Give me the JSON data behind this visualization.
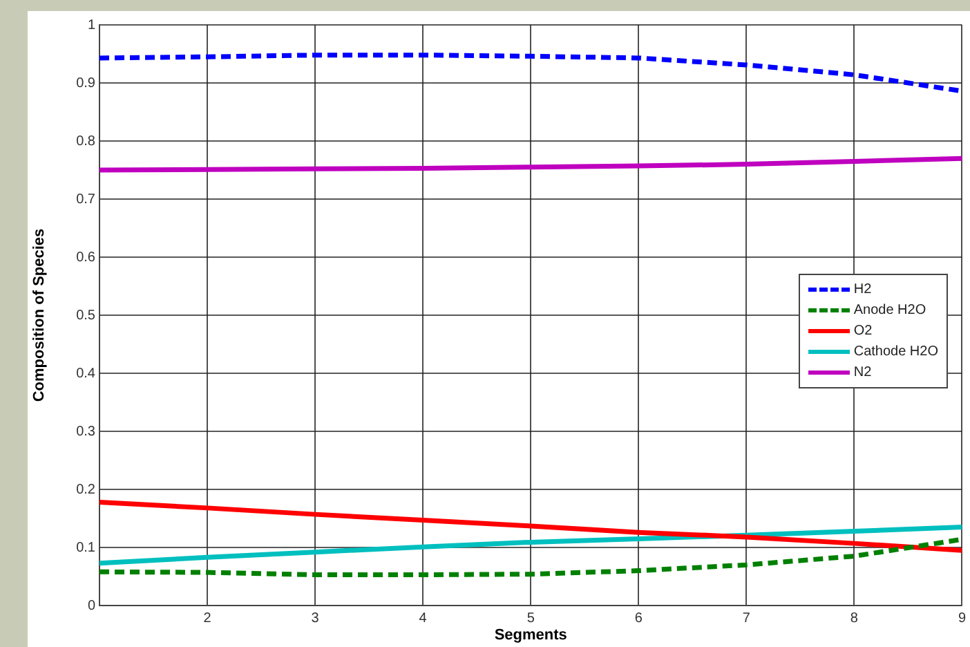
{
  "chart_data": {
    "type": "line",
    "xlabel": "Segments",
    "ylabel": "Composition of Species",
    "x": [
      1,
      2,
      3,
      4,
      5,
      6,
      7,
      8,
      9
    ],
    "xlim": [
      1,
      9
    ],
    "xticks": [
      {
        "value": 1,
        "label": null
      },
      2,
      3,
      4,
      5,
      6,
      7,
      8,
      9
    ],
    "ylim": [
      0,
      1
    ],
    "yticks": [
      0,
      0.1,
      0.2,
      0.3,
      0.4,
      0.5,
      0.6,
      0.7,
      0.8,
      0.9,
      1
    ],
    "grid": true,
    "legend": "right",
    "marker": "none",
    "series": [
      {
        "name": "H2",
        "color": "#0000ff",
        "line_style": "dashed",
        "values": [
          0.943,
          0.945,
          0.948,
          0.948,
          0.946,
          0.943,
          0.931,
          0.914,
          0.886
        ]
      },
      {
        "name": "Anode H2O",
        "color": "#008000",
        "line_style": "dashed",
        "values": [
          0.058,
          0.057,
          0.053,
          0.053,
          0.054,
          0.06,
          0.07,
          0.085,
          0.114
        ]
      },
      {
        "name": "O2",
        "color": "#ff0000",
        "line_style": "solid",
        "values": [
          0.178,
          0.168,
          0.157,
          0.147,
          0.137,
          0.126,
          0.118,
          0.107,
          0.095
        ]
      },
      {
        "name": "Cathode H2O",
        "color": "#00bfbf",
        "line_style": "solid",
        "values": [
          0.073,
          0.083,
          0.092,
          0.101,
          0.109,
          0.115,
          0.121,
          0.128,
          0.135
        ]
      },
      {
        "name": "N2",
        "color": "#bf00bf",
        "line_style": "solid",
        "values": [
          0.75,
          0.751,
          0.752,
          0.753,
          0.755,
          0.757,
          0.76,
          0.765,
          0.77
        ]
      }
    ]
  }
}
